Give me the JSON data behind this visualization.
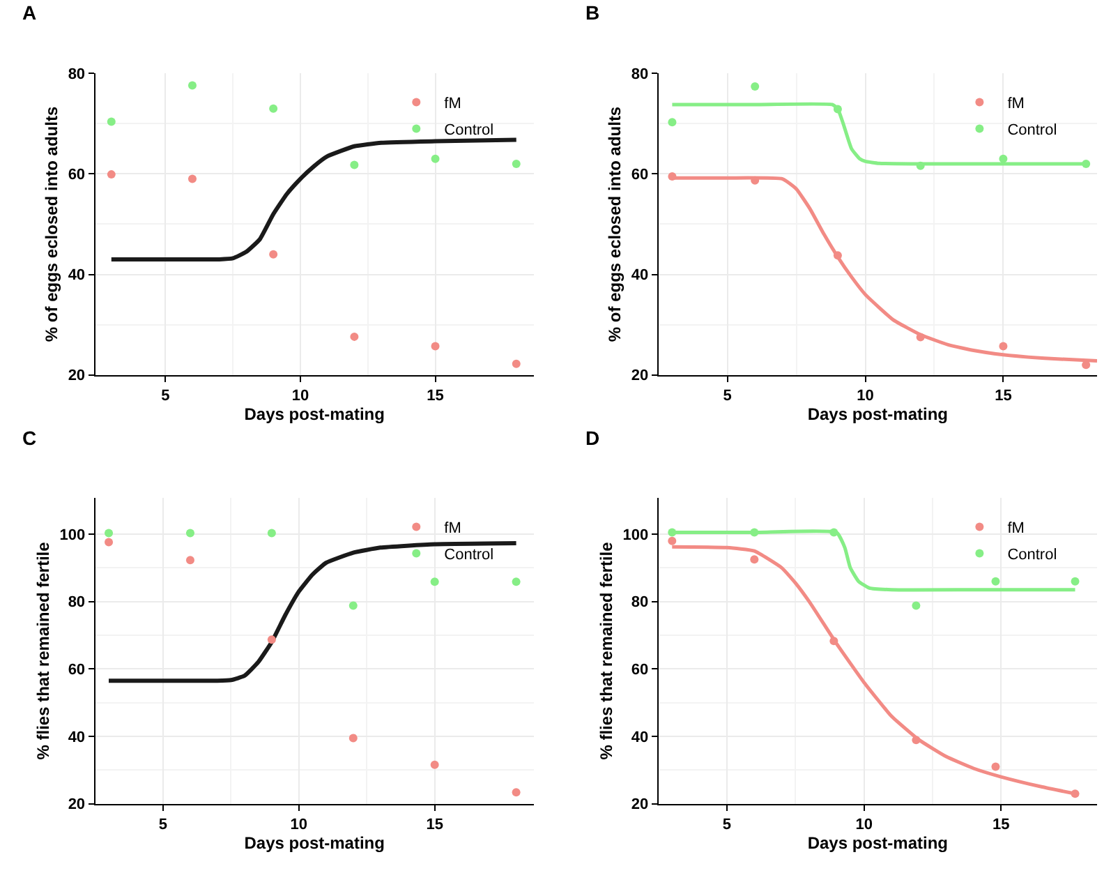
{
  "chart_data": [
    {
      "type": "scatter",
      "title": "A",
      "xlabel": "Days post-mating",
      "ylabel": "% of eggs eclosed into adults",
      "xlim": [
        2.4,
        18.65
      ],
      "ylim": [
        20,
        80
      ],
      "xticks": [
        5,
        10,
        15
      ],
      "yticks": [
        20,
        40,
        60,
        80
      ],
      "grid": true,
      "legend": "top right",
      "marker": "circle",
      "x": [
        3,
        6,
        9,
        12,
        15,
        18
      ],
      "series": [
        {
          "name": "fM",
          "color": "#f28b85",
          "values": [
            59.9,
            59,
            44,
            27.6,
            25.7,
            22.2
          ]
        },
        {
          "name": "Control",
          "color": "#86ee86",
          "values": [
            70.4,
            77.6,
            73,
            61.8,
            63,
            62
          ]
        },
        {
          "type": "line",
          "marker": "none",
          "color": "#1a1a1a",
          "x": [
            3,
            5,
            7,
            7.5,
            8,
            8.5,
            9,
            9.5,
            10,
            10.5,
            11,
            12,
            13,
            15,
            18
          ],
          "values": [
            43,
            43,
            43,
            43.2,
            44.5,
            47,
            52,
            56,
            59,
            61.5,
            63.5,
            65.5,
            66.2,
            66.5,
            66.8
          ]
        }
      ]
    },
    {
      "type": "scatter",
      "title": "B",
      "xlabel": "Days post-mating",
      "ylabel": "% of eggs eclosed into adults",
      "xlim": [
        2.5,
        18.4
      ],
      "ylim": [
        20,
        80
      ],
      "xticks": [
        5,
        10,
        15
      ],
      "yticks": [
        20,
        40,
        60,
        80
      ],
      "grid": true,
      "legend": "top right",
      "marker": "circle",
      "x": [
        3,
        6,
        9,
        12,
        15,
        18
      ],
      "series": [
        {
          "name": "fM",
          "color": "#f28b85",
          "values": [
            59.5,
            58.7,
            43.8,
            27.5,
            25.7,
            22
          ]
        },
        {
          "name": "Control",
          "color": "#86ee86",
          "values": [
            70.3,
            77.4,
            72.9,
            61.6,
            63,
            62
          ]
        },
        {
          "type": "line",
          "marker": "none",
          "color": "#f28b85",
          "x": [
            3,
            5,
            7,
            7.5,
            8,
            8.5,
            9,
            9.5,
            10,
            11,
            12,
            13,
            14,
            15,
            16.5,
            18.4
          ],
          "values": [
            59.2,
            59.2,
            59,
            57,
            53,
            48,
            43.5,
            39.5,
            36,
            31,
            28,
            26,
            24.8,
            24,
            23.3,
            22.8
          ]
        },
        {
          "type": "line",
          "marker": "none",
          "color": "#86ee86",
          "x": [
            3,
            6,
            8.8,
            9,
            9.2,
            9.5,
            9.8,
            10,
            10.5,
            12,
            15,
            18
          ],
          "values": [
            73.8,
            73.8,
            73.8,
            73,
            70,
            65,
            63,
            62.5,
            62.1,
            62,
            62,
            62
          ]
        }
      ]
    },
    {
      "type": "scatter",
      "title": "C",
      "xlabel": "Days post-mating",
      "ylabel": "% flies that remained fertile",
      "xlim": [
        2.5,
        18.65
      ],
      "ylim": [
        20,
        110.7
      ],
      "xticks": [
        5,
        10,
        15
      ],
      "yticks": [
        20,
        40,
        60,
        80,
        100
      ],
      "grid": true,
      "legend": "top right",
      "marker": "circle",
      "x": [
        3,
        6,
        9,
        12,
        15,
        18
      ],
      "series": [
        {
          "name": "fM",
          "color": "#f28b85",
          "values": [
            97.6,
            92.3,
            68.7,
            39.5,
            31.6,
            23.4
          ]
        },
        {
          "name": "Control",
          "color": "#86ee86",
          "values": [
            100.3,
            100.3,
            100.3,
            78.8,
            85.9,
            85.9
          ]
        },
        {
          "type": "line",
          "marker": "none",
          "color": "#1a1a1a",
          "x": [
            3,
            5,
            7,
            7.5,
            8,
            8.5,
            9,
            9.5,
            10,
            10.5,
            11,
            12,
            13,
            15,
            18
          ],
          "values": [
            56.5,
            56.5,
            56.5,
            56.7,
            58,
            62,
            68,
            76,
            83,
            88,
            91.5,
            94.5,
            96,
            97,
            97.3
          ]
        }
      ]
    },
    {
      "type": "scatter",
      "title": "D",
      "xlabel": "Days post-mating",
      "ylabel": "% flies that remained fertile",
      "xlim": [
        2.5,
        18.5
      ],
      "ylim": [
        20,
        110.7
      ],
      "xticks": [
        5,
        10,
        15
      ],
      "yticks": [
        20,
        40,
        60,
        80,
        100
      ],
      "grid": true,
      "legend": "top right",
      "marker": "circle",
      "x": [
        3,
        6,
        8.9,
        11.9,
        14.8,
        17.7
      ],
      "series": [
        {
          "name": "fM",
          "color": "#f28b85",
          "values": [
            98,
            92.5,
            68.3,
            38.9,
            31,
            23
          ]
        },
        {
          "name": "Control",
          "color": "#86ee86",
          "values": [
            100.5,
            100.5,
            100.5,
            78.8,
            86,
            86
          ]
        },
        {
          "type": "line",
          "marker": "none",
          "color": "#f28b85",
          "x": [
            3,
            5,
            6,
            7,
            7.5,
            8,
            9,
            10,
            11,
            12,
            13,
            14,
            15,
            16.5,
            17.7
          ],
          "values": [
            96.2,
            96,
            95,
            90,
            85.5,
            80,
            67.5,
            56,
            46,
            39,
            34,
            30.5,
            28,
            25,
            23
          ]
        },
        {
          "type": "line",
          "marker": "none",
          "color": "#86ee86",
          "x": [
            3,
            6,
            9,
            9.3,
            9.5,
            9.8,
            10.2,
            11,
            14,
            17.7
          ],
          "values": [
            100.5,
            100.5,
            100.5,
            96,
            90,
            86,
            84,
            83.5,
            83.5,
            83.5
          ]
        }
      ]
    }
  ]
}
